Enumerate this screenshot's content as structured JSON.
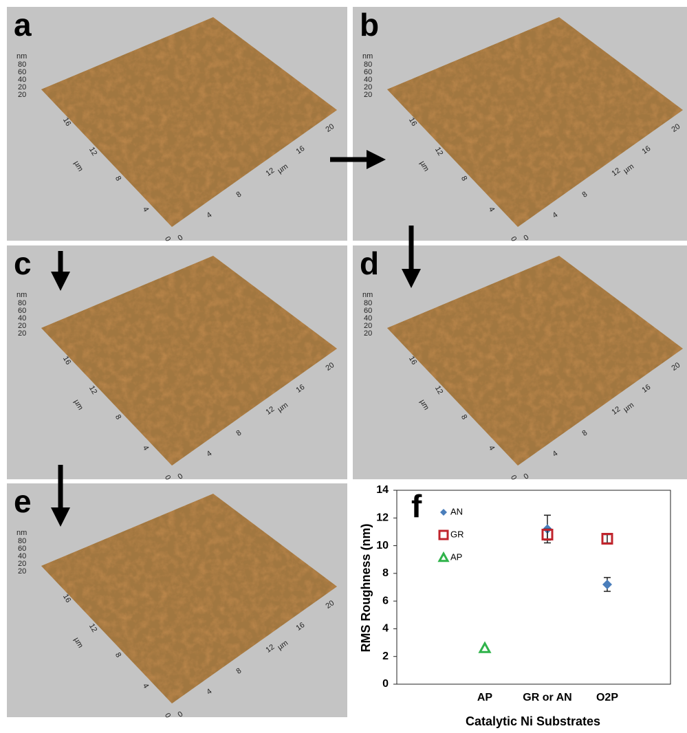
{
  "panels": [
    {
      "label": "a"
    },
    {
      "label": "b"
    },
    {
      "label": "c"
    },
    {
      "label": "d"
    },
    {
      "label": "e"
    }
  ],
  "afm_axes": {
    "z_label": "nm",
    "z_ticks": [
      "80",
      "60",
      "40",
      "20",
      "20"
    ],
    "y_label": "µm",
    "y_ticks": [
      "0",
      "4",
      "8",
      "12",
      "16"
    ],
    "x_label": "µm",
    "x_ticks": [
      "0",
      "4",
      "8",
      "12",
      "16",
      "20"
    ]
  },
  "chart_data": {
    "type": "scatter",
    "panel_label": "f",
    "categories": [
      "AP",
      "GR or AN",
      "O2P"
    ],
    "x_label": "Catalytic Ni Substrates",
    "y_label": "RMS Roughness (nm)",
    "series": [
      {
        "name": "AN",
        "color": "#4a7ebb",
        "marker": "diamond",
        "values": [
          null,
          11.2,
          7.2
        ],
        "errors": [
          null,
          1.0,
          0.5
        ]
      },
      {
        "name": "GR",
        "color": "#c0242c",
        "marker": "square",
        "values": [
          null,
          10.8,
          10.5
        ],
        "errors": [
          null,
          0.4,
          0.3
        ]
      },
      {
        "name": "AP",
        "color": "#2fb34a",
        "marker": "triangle",
        "values": [
          2.6,
          null,
          null
        ]
      }
    ],
    "ylim": [
      0,
      14
    ],
    "yticks": [
      0,
      2,
      4,
      6,
      8,
      10,
      12,
      14
    ],
    "legend": "upper left"
  }
}
